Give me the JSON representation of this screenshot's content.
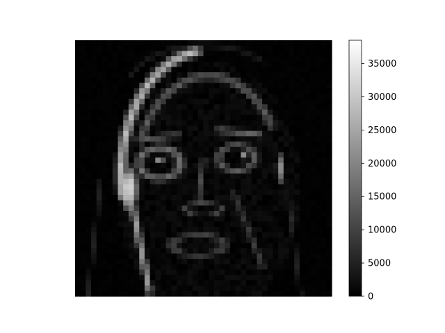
{
  "chart_data": {
    "type": "heatmap",
    "title": "",
    "xlabel": "",
    "ylabel": "",
    "axes_visible": false,
    "colormap": "gray",
    "colorbar": {
      "vmin": 0,
      "vmax": 38500,
      "ticks": [
        0,
        5000,
        10000,
        15000,
        20000,
        25000,
        30000,
        35000
      ],
      "tick_labels": [
        "0",
        "5000",
        "10000",
        "15000",
        "20000",
        "25000",
        "30000",
        "35000"
      ]
    },
    "image_description": "grayscale edge-magnitude map of a face",
    "grid_size": [
      48,
      48
    ],
    "value_range": [
      0,
      38500
    ],
    "features": [
      {
        "kind": "ellipse",
        "cx": 0.21,
        "cy": 0.58,
        "rx": 0.04,
        "ry": 0.1,
        "value": 32000
      },
      {
        "kind": "ellipse",
        "cx": 0.8,
        "cy": 0.5,
        "rx": 0.02,
        "ry": 0.07,
        "value": 20000
      },
      {
        "kind": "arc",
        "cx": 0.52,
        "cy": 0.52,
        "rx": 0.34,
        "ry": 0.48,
        "from": 170,
        "to": 262,
        "width": 0.03,
        "value": 30000
      },
      {
        "kind": "arc",
        "cx": 0.52,
        "cy": 0.52,
        "rx": 0.28,
        "ry": 0.38,
        "from": 200,
        "to": 330,
        "width": 0.025,
        "value": 14000
      },
      {
        "kind": "line",
        "x1": 0.21,
        "y1": 0.58,
        "x2": 0.29,
        "y2": 0.98,
        "width": 0.02,
        "value": 24000
      },
      {
        "kind": "ellipse",
        "cx": 0.33,
        "cy": 0.48,
        "rx": 0.08,
        "ry": 0.06,
        "value": 16000,
        "ring": true
      },
      {
        "kind": "ellipse",
        "cx": 0.63,
        "cy": 0.46,
        "rx": 0.07,
        "ry": 0.05,
        "value": 13000,
        "ring": true
      },
      {
        "kind": "ellipse",
        "cx": 0.33,
        "cy": 0.47,
        "rx": 0.02,
        "ry": 0.02,
        "value": 22000
      },
      {
        "kind": "ellipse",
        "cx": 0.66,
        "cy": 0.45,
        "rx": 0.02,
        "ry": 0.02,
        "value": 20000
      },
      {
        "kind": "line",
        "x1": 0.25,
        "y1": 0.39,
        "x2": 0.4,
        "y2": 0.37,
        "width": 0.018,
        "value": 12000
      },
      {
        "kind": "line",
        "x1": 0.56,
        "y1": 0.35,
        "x2": 0.72,
        "y2": 0.37,
        "width": 0.018,
        "value": 15000
      },
      {
        "kind": "line",
        "x1": 0.5,
        "y1": 0.47,
        "x2": 0.48,
        "y2": 0.63,
        "width": 0.016,
        "value": 10000
      },
      {
        "kind": "ellipse",
        "cx": 0.5,
        "cy": 0.66,
        "rx": 0.07,
        "ry": 0.025,
        "value": 9000,
        "ring": true
      },
      {
        "kind": "ellipse",
        "cx": 0.48,
        "cy": 0.8,
        "rx": 0.1,
        "ry": 0.04,
        "value": 9000,
        "ring": true
      },
      {
        "kind": "line",
        "x1": 0.62,
        "y1": 0.6,
        "x2": 0.73,
        "y2": 0.88,
        "width": 0.018,
        "value": 8000
      },
      {
        "kind": "line",
        "x1": 0.1,
        "y1": 0.55,
        "x2": 0.05,
        "y2": 1.0,
        "width": 0.012,
        "value": 5000
      },
      {
        "kind": "line",
        "x1": 0.83,
        "y1": 0.6,
        "x2": 0.88,
        "y2": 1.0,
        "width": 0.012,
        "value": 5000
      },
      {
        "kind": "arc",
        "cx": 0.5,
        "cy": 0.2,
        "rx": 0.3,
        "ry": 0.18,
        "from": 200,
        "to": 320,
        "width": 0.015,
        "value": 4000
      }
    ]
  }
}
